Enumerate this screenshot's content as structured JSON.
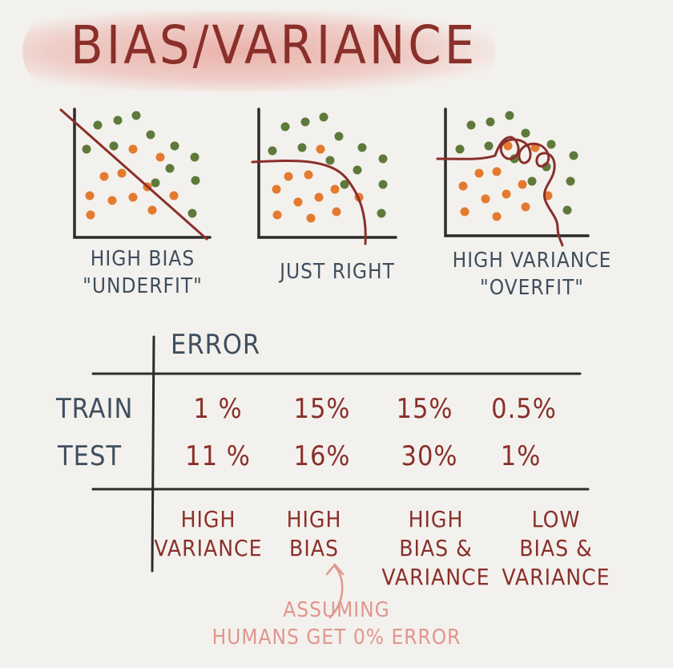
{
  "title": "BIAS/VARIANCE",
  "colors": {
    "ink_red": "#8a2f2a",
    "ink_blue": "#3f4e5e",
    "dot_green": "#5e7a3a",
    "dot_orange": "#e37a2e",
    "highlight": "#e8a29a",
    "note_pink": "#e0968e"
  },
  "plots": [
    {
      "id": "high-bias",
      "caption_line1": "HIGH BIAS",
      "caption_line2": "\"UNDERFIT\""
    },
    {
      "id": "just-right",
      "caption_line1": "JUST RIGHT",
      "caption_line2": ""
    },
    {
      "id": "high-variance",
      "caption_line1": "HIGH VARIANCE",
      "caption_line2": "\"OVERFIT\""
    }
  ],
  "table": {
    "header": "ERROR",
    "rows": [
      {
        "label": "TRAIN",
        "values": [
          "1 %",
          "15%",
          "15%",
          "0.5%"
        ]
      },
      {
        "label": "TEST",
        "values": [
          "11 %",
          "16%",
          "30%",
          "1%"
        ]
      }
    ],
    "diagnoses": [
      {
        "line1": "HIGH",
        "line2": "VARIANCE",
        "line3": ""
      },
      {
        "line1": "HIGH",
        "line2": "BIAS",
        "line3": ""
      },
      {
        "line1": "HIGH",
        "line2": "BIAS &",
        "line3": "VARIANCE"
      },
      {
        "line1": "LOW",
        "line2": "BIAS &",
        "line3": "VARIANCE"
      }
    ]
  },
  "note": {
    "line1": "ASSUMING",
    "line2": "HUMANS GET 0% ERROR"
  }
}
